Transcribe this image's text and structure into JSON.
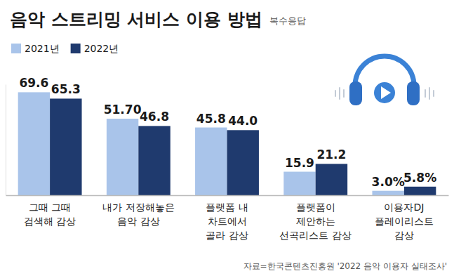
{
  "chart_data": {
    "type": "bar",
    "title": "음악 스트리밍 서비스 이용 방법",
    "subtitle": "복수응답",
    "categories": [
      "그때 그때\n검색해 감상",
      "내가 저장해놓은\n음악 감상",
      "플랫폼 내\n차트에서\n골라 감상",
      "플랫폼이\n제안하는\n선곡리스트 감상",
      "이용자DJ\n플레이리스트\n감상"
    ],
    "series": [
      {
        "name": "2021년",
        "color": "#a9c4ea",
        "values": [
          69.6,
          51.7,
          45.8,
          15.9,
          3.0
        ],
        "value_labels": [
          "69.6",
          "51.70",
          "45.8",
          "15.9",
          "3.0%"
        ]
      },
      {
        "name": "2022년",
        "color": "#1f3a6e",
        "values": [
          65.3,
          46.8,
          44.0,
          21.2,
          5.8
        ],
        "value_labels": [
          "65.3",
          "46.8",
          "44.0",
          "21.2",
          "5.8%"
        ]
      }
    ],
    "ylim": [
      0,
      75
    ],
    "yticks": [
      0
    ],
    "tick_labels": "x",
    "data_labels": true,
    "grid": false,
    "legend": "top-left",
    "source": "자료=한국콘텐츠진흥원 '2022 음악 이용자 실태조사'"
  }
}
